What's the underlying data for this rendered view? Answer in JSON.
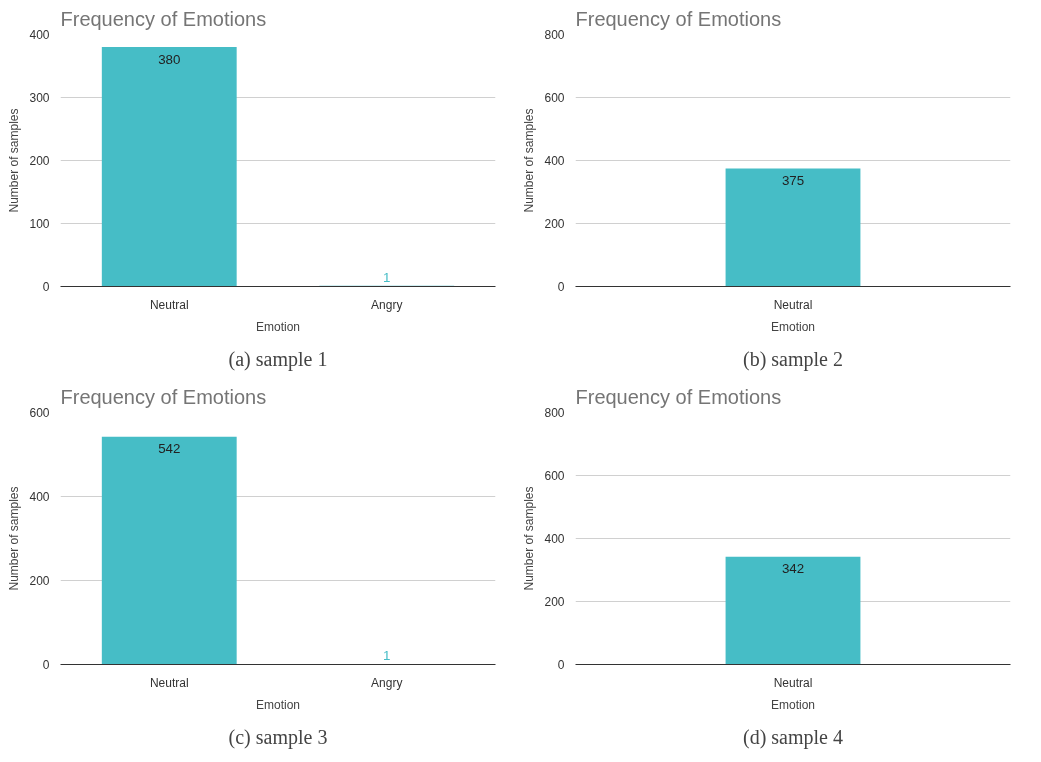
{
  "chart_data": [
    {
      "type": "bar",
      "title": "Frequency of Emotions",
      "xlabel": "Emotion",
      "ylabel": "Number of samples",
      "categories": [
        "Neutral",
        "Angry"
      ],
      "values": [
        380,
        1
      ],
      "color": "#46bdc6",
      "ylim": [
        0,
        400
      ],
      "yticks": [
        0,
        100,
        200,
        300,
        400
      ],
      "grid": "y",
      "data_labels": true,
      "annotations": [
        "(a) sample 1"
      ]
    },
    {
      "type": "bar",
      "title": "Frequency of Emotions",
      "xlabel": "Emotion",
      "ylabel": "Number of samples",
      "categories": [
        "Neutral"
      ],
      "values": [
        375
      ],
      "color": "#46bdc6",
      "ylim": [
        0,
        800
      ],
      "yticks": [
        0,
        200,
        400,
        600,
        800
      ],
      "grid": "y",
      "data_labels": true,
      "annotations": [
        "(b) sample 2"
      ]
    },
    {
      "type": "bar",
      "title": "Frequency of Emotions",
      "xlabel": "Emotion",
      "ylabel": "Number of samples",
      "categories": [
        "Neutral",
        "Angry"
      ],
      "values": [
        542,
        1
      ],
      "color": "#46bdc6",
      "ylim": [
        0,
        600
      ],
      "yticks": [
        0,
        200,
        400,
        600
      ],
      "grid": "y",
      "data_labels": true,
      "annotations": [
        "(c) sample 3"
      ]
    },
    {
      "type": "bar",
      "title": "Frequency of Emotions",
      "xlabel": "Emotion",
      "ylabel": "Number of samples",
      "categories": [
        "Neutral"
      ],
      "values": [
        342
      ],
      "color": "#46bdc6",
      "ylim": [
        0,
        800
      ],
      "yticks": [
        0,
        200,
        400,
        600,
        800
      ],
      "grid": "y",
      "data_labels": true,
      "annotations": [
        "(d) sample 4"
      ]
    }
  ]
}
